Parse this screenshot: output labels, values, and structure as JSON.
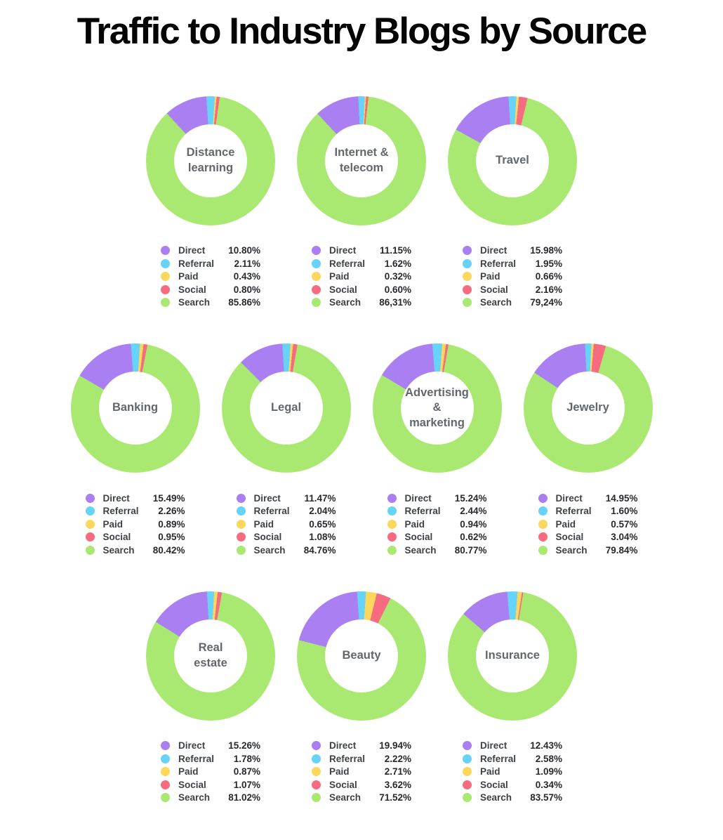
{
  "colors": {
    "direct": "#a97ff1",
    "referral": "#67d3f9",
    "paid": "#fbd75b",
    "social": "#f76b80",
    "search": "#a9e971",
    "title_text": "#050505",
    "center_label_text": "#63676c",
    "legend_label_text": "#3e4145",
    "legend_value_text": "#27292d",
    "background": "#ffffff"
  },
  "chart_data": {
    "type": "pie",
    "variant": "donut",
    "title": "Traffic to Industry Blogs by Source",
    "legend_position": "below",
    "series_labels": [
      "Direct",
      "Referral",
      "Paid",
      "Social",
      "Search"
    ],
    "series_color_keys": [
      "direct",
      "referral",
      "paid",
      "social",
      "search"
    ],
    "layout": {
      "rows": [
        [
          0,
          1,
          2
        ],
        [
          3,
          4,
          5,
          6
        ],
        [
          7,
          8,
          9
        ]
      ]
    },
    "charts": [
      {
        "label": "Distance\nlearning",
        "values_pct": [
          10.8,
          2.11,
          0.43,
          0.8,
          85.86
        ],
        "display": [
          "10.80%",
          "2.11%",
          "0.43%",
          "0.80%",
          "85.86%"
        ]
      },
      {
        "label": "Internet &\ntelecom",
        "values_pct": [
          11.15,
          1.62,
          0.32,
          0.6,
          86.31
        ],
        "display": [
          "11.15%",
          "1.62%",
          "0.32%",
          "0.60%",
          "86,31%"
        ]
      },
      {
        "label": "Travel",
        "values_pct": [
          15.98,
          1.95,
          0.66,
          2.16,
          79.24
        ],
        "display": [
          "15.98%",
          "1.95%",
          "0.66%",
          "2.16%",
          "79,24%"
        ]
      },
      {
        "label": "Banking",
        "values_pct": [
          15.49,
          2.26,
          0.89,
          0.95,
          80.42
        ],
        "display": [
          "15.49%",
          "2.26%",
          "0.89%",
          "0.95%",
          "80.42%"
        ]
      },
      {
        "label": "Legal",
        "values_pct": [
          11.47,
          2.04,
          0.65,
          1.08,
          84.76
        ],
        "display": [
          "11.47%",
          "2.04%",
          "0.65%",
          "1.08%",
          "84.76%"
        ]
      },
      {
        "label": "Advertising &\nmarketing",
        "values_pct": [
          15.24,
          2.44,
          0.94,
          0.62,
          80.77
        ],
        "display": [
          "15.24%",
          "2.44%",
          "0.94%",
          "0.62%",
          "80.77%"
        ]
      },
      {
        "label": "Jewelry",
        "values_pct": [
          14.95,
          1.6,
          0.57,
          3.04,
          79.84
        ],
        "display": [
          "14.95%",
          "1.60%",
          "0.57%",
          "3.04%",
          "79.84%"
        ]
      },
      {
        "label": "Real\nestate",
        "values_pct": [
          15.26,
          1.78,
          0.87,
          1.07,
          81.02
        ],
        "display": [
          "15.26%",
          "1.78%",
          "0.87%",
          "1.07%",
          "81.02%"
        ]
      },
      {
        "label": "Beauty",
        "values_pct": [
          19.94,
          2.22,
          2.71,
          3.62,
          71.52
        ],
        "display": [
          "19.94%",
          "2.22%",
          "2.71%",
          "3.62%",
          "71.52%"
        ]
      },
      {
        "label": "Insurance",
        "values_pct": [
          12.43,
          2.58,
          1.09,
          0.34,
          83.57
        ],
        "display": [
          "12.43%",
          "2.58%",
          "1.09%",
          "0.34%",
          "83.57%"
        ]
      }
    ]
  }
}
